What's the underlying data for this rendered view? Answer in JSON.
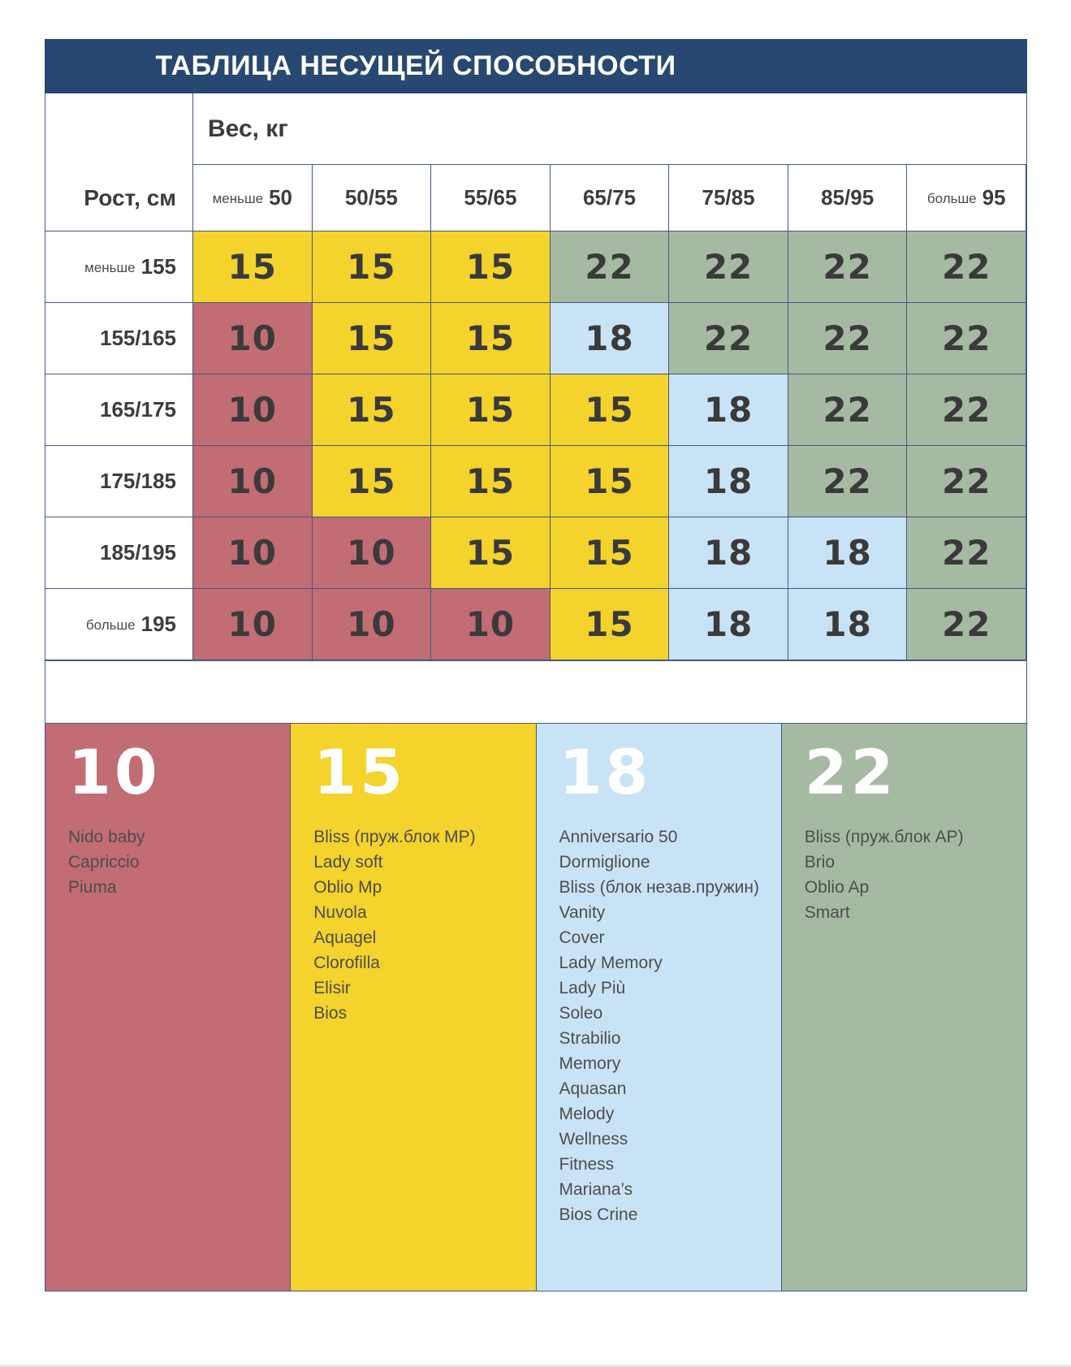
{
  "page": {
    "title": "ТАБЛИЦА НЕСУЩЕЙ СПОСОБНОСТИ"
  },
  "table": {
    "weight_axis_label": "Вес, кг",
    "height_axis_label": "Рост, см",
    "weight_columns": [
      {
        "prefix": "меньше",
        "value": "50"
      },
      {
        "value": "50/55"
      },
      {
        "value": "55/65"
      },
      {
        "value": "65/75"
      },
      {
        "value": "75/85"
      },
      {
        "value": "85/95"
      },
      {
        "prefix": "больше",
        "value": "95"
      }
    ],
    "rows": [
      {
        "prefix": "меньше",
        "label": "155",
        "values": [
          "15",
          "15",
          "15",
          "22",
          "22",
          "22",
          "22"
        ]
      },
      {
        "label": "155/165",
        "values": [
          "10",
          "15",
          "15",
          "18",
          "22",
          "22",
          "22"
        ]
      },
      {
        "label": "165/175",
        "values": [
          "10",
          "15",
          "15",
          "15",
          "18",
          "22",
          "22"
        ]
      },
      {
        "label": "175/185",
        "values": [
          "10",
          "15",
          "15",
          "15",
          "18",
          "22",
          "22"
        ]
      },
      {
        "label": "185/195",
        "values": [
          "10",
          "10",
          "15",
          "15",
          "18",
          "18",
          "22"
        ]
      },
      {
        "prefix": "больше",
        "label": "195",
        "values": [
          "10",
          "10",
          "10",
          "15",
          "18",
          "18",
          "22"
        ]
      }
    ]
  },
  "legend": [
    {
      "value": "10",
      "items": [
        "Nido baby",
        "Capriccio",
        "Piuma"
      ]
    },
    {
      "value": "15",
      "items": [
        "Bliss (пруж.блок MP)",
        "Lady soft",
        "Oblio Mp",
        "Nuvola",
        "Aquagel",
        "Clorofilla",
        "Elisir",
        "Bios"
      ]
    },
    {
      "value": "18",
      "items": [
        "Anniversario 50",
        "Dormiglione",
        "Bliss (блок незав.пружин)",
        "Vanity",
        "Cover",
        "Lady Memory",
        "Lady Più",
        "Soleo",
        "Strabilio",
        "Memory",
        "Aquasan",
        "Melody",
        "Wellness",
        "Fitness",
        "Mariana’s",
        "Bios Crine"
      ]
    },
    {
      "value": "22",
      "items": [
        "Bliss (пруж.блок AP)",
        "Brio",
        "Oblio Ap",
        "Smart"
      ]
    }
  ],
  "colors": {
    "header_navy": "#274870",
    "grid_line": "#44597c",
    "capacity_10": "#c26c74",
    "capacity_15": "#f3d32c",
    "capacity_18": "#c9e3f6",
    "capacity_22": "#a6baa3",
    "cell_text": "#3a3a3a"
  },
  "chart_data": {
    "type": "heatmap",
    "title": "ТАБЛИЦА НЕСУЩЕЙ СПОСОБНОСТИ",
    "x_label": "Вес, кг",
    "y_label": "Рост, см",
    "x_categories": [
      "меньше 50",
      "50/55",
      "55/65",
      "65/75",
      "75/85",
      "85/95",
      "больше 95"
    ],
    "y_categories": [
      "меньше 155",
      "155/165",
      "165/175",
      "175/185",
      "185/195",
      "больше 195"
    ],
    "values": [
      [
        15,
        15,
        15,
        22,
        22,
        22,
        22
      ],
      [
        10,
        15,
        15,
        18,
        22,
        22,
        22
      ],
      [
        10,
        15,
        15,
        15,
        18,
        22,
        22
      ],
      [
        10,
        15,
        15,
        15,
        18,
        22,
        22
      ],
      [
        10,
        10,
        15,
        15,
        18,
        18,
        22
      ],
      [
        10,
        10,
        10,
        15,
        18,
        18,
        22
      ]
    ],
    "value_colors": {
      "10": "#c26c74",
      "15": "#f3d32c",
      "18": "#c9e3f6",
      "22": "#a6baa3"
    },
    "legend_position": "bottom",
    "legend_groups": {
      "10": [
        "Nido baby",
        "Capriccio",
        "Piuma"
      ],
      "15": [
        "Bliss (пруж.блок MP)",
        "Lady soft",
        "Oblio Mp",
        "Nuvola",
        "Aquagel",
        "Clorofilla",
        "Elisir",
        "Bios"
      ],
      "18": [
        "Anniversario 50",
        "Dormiglione",
        "Bliss (блок незав.пружин)",
        "Vanity",
        "Cover",
        "Lady Memory",
        "Lady Più",
        "Soleo",
        "Strabilio",
        "Memory",
        "Aquasan",
        "Melody",
        "Wellness",
        "Fitness",
        "Mariana’s",
        "Bios Crine"
      ],
      "22": [
        "Bliss (пруж.блок AP)",
        "Brio",
        "Oblio Ap",
        "Smart"
      ]
    }
  }
}
